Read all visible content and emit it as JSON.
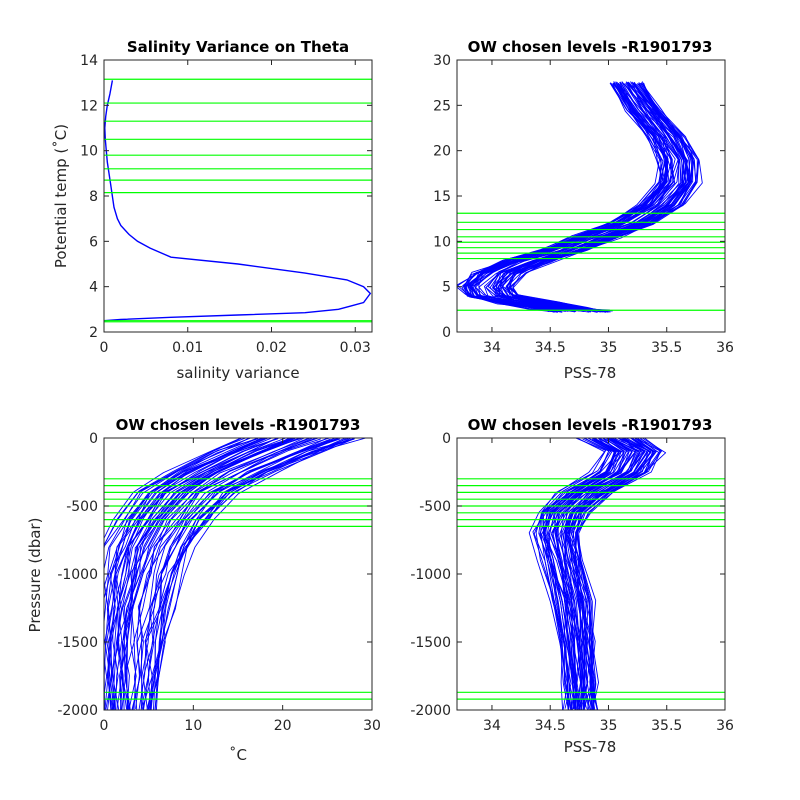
{
  "chart_data": [
    {
      "id": "tl",
      "type": "line",
      "title": "Salinity Variance on Theta",
      "xlabel": "salinity variance",
      "ylabel": "Potential temp (˚C)",
      "xlim": [
        0,
        0.032
      ],
      "ylim": [
        2,
        14
      ],
      "xticks": [
        0,
        0.01,
        0.02,
        0.03
      ],
      "xtick_labels": [
        "0",
        "0.01",
        "0.02",
        "0.03"
      ],
      "yticks": [
        2,
        4,
        6,
        8,
        10,
        12,
        14
      ],
      "ytick_labels": [
        "2",
        "4",
        "6",
        "8",
        "10",
        "12",
        "14"
      ],
      "hlines": [
        2.45,
        2.5,
        8.15,
        8.7,
        9.2,
        9.8,
        10.5,
        11.3,
        12.1,
        13.15
      ],
      "series": [
        {
          "x": [
            0.001,
            0.0007,
            0.0004,
            0.0002,
            0.0001,
            0.00015,
            0.0004,
            0.0008,
            0.0012,
            0.0016,
            0.002,
            0.003,
            0.004,
            0.0055,
            0.008,
            0.016,
            0.024,
            0.029,
            0.031,
            0.0318,
            0.031,
            0.0295,
            0.028,
            0.024,
            0.016,
            0.008,
            0.002,
            0.0
          ],
          "y": [
            13.1,
            12.5,
            12.0,
            11.5,
            11.0,
            10.5,
            9.5,
            8.5,
            7.5,
            7.0,
            6.7,
            6.3,
            6.0,
            5.7,
            5.3,
            5.0,
            4.6,
            4.3,
            4.0,
            3.7,
            3.3,
            3.15,
            3.0,
            2.85,
            2.75,
            2.65,
            2.55,
            2.5
          ]
        }
      ]
    },
    {
      "id": "tr",
      "type": "line",
      "title": "OW chosen levels -R1901793",
      "xlabel": "PSS-78",
      "ylabel": "",
      "xlim": [
        33.7,
        36
      ],
      "ylim": [
        0,
        30
      ],
      "xticks": [
        34,
        34.5,
        35,
        35.5,
        36
      ],
      "xtick_labels": [
        "34",
        "34.5",
        "35",
        "35.5",
        "36"
      ],
      "yticks": [
        0,
        5,
        10,
        15,
        20,
        25,
        30
      ],
      "ytick_labels": [
        "0",
        "5",
        "10",
        "15",
        "20",
        "25",
        "30"
      ],
      "hlines": [
        2.4,
        8.1,
        8.7,
        9.3,
        9.9,
        10.5,
        11.3,
        12.1,
        13.1
      ],
      "profile_count": 60,
      "base_profile": {
        "x": [
          34.75,
          34.6,
          34.3,
          34.0,
          33.95,
          34.05,
          34.3,
          34.6,
          34.9,
          35.2,
          35.45,
          35.6,
          35.6,
          35.5,
          35.3,
          35.15
        ],
        "y": [
          2.3,
          2.6,
          3.2,
          4.0,
          5.0,
          6.5,
          7.8,
          9.0,
          10.5,
          12.0,
          14.0,
          16.5,
          19.0,
          21.5,
          24.5,
          27.5
        ]
      }
    },
    {
      "id": "bl",
      "type": "line",
      "title": "OW chosen levels -R1901793",
      "xlabel": "˚C",
      "ylabel": "Pressure (dbar)",
      "xlim": [
        0,
        30
      ],
      "ylim": [
        -2000,
        0
      ],
      "xticks": [
        0,
        10,
        20,
        30
      ],
      "xtick_labels": [
        "0",
        "10",
        "20",
        "30"
      ],
      "yticks": [
        -2000,
        -1500,
        -1000,
        -500,
        0
      ],
      "ytick_labels": [
        "-2000",
        "-1500",
        "-1000",
        "-500",
        "0"
      ],
      "hlines": [
        -300,
        -350,
        -400,
        -450,
        -500,
        -550,
        -600,
        -650,
        -1870,
        -1920
      ],
      "profile_count": 60,
      "base_profile": {
        "x": [
          22.0,
          18.0,
          13.0,
          9.0,
          6.5,
          4.8,
          3.8,
          3.2,
          2.8,
          2.6,
          2.5
        ],
        "y": [
          0,
          -100,
          -250,
          -400,
          -600,
          -800,
          -1000,
          -1250,
          -1500,
          -1750,
          -2000
        ]
      }
    },
    {
      "id": "br",
      "type": "line",
      "title": "OW chosen levels -R1901793",
      "xlabel": "PSS-78",
      "ylabel": "",
      "xlim": [
        33.7,
        36
      ],
      "ylim": [
        -2000,
        0
      ],
      "xticks": [
        34,
        34.5,
        35,
        35.5,
        36
      ],
      "xtick_labels": [
        "34",
        "34.5",
        "35",
        "35.5",
        "36"
      ],
      "yticks": [
        -2000,
        -1500,
        -1000,
        -500,
        0
      ],
      "ytick_labels": [
        "-2000",
        "-1500",
        "-1000",
        "-500",
        "0"
      ],
      "hlines": [
        -300,
        -350,
        -400,
        -450,
        -500,
        -550,
        -600,
        -650,
        -1870,
        -1920
      ],
      "profile_count": 60,
      "base_profile": {
        "x": [
          35.0,
          35.2,
          35.1,
          34.8,
          34.6,
          34.55,
          34.6,
          34.68,
          34.72,
          34.75,
          34.75
        ],
        "y": [
          0,
          -100,
          -250,
          -400,
          -550,
          -700,
          -900,
          -1200,
          -1500,
          -1800,
          -2000
        ]
      }
    }
  ],
  "colors": {
    "profile": "#0000ff",
    "levels": "#00ff00",
    "axes": "#262626"
  }
}
